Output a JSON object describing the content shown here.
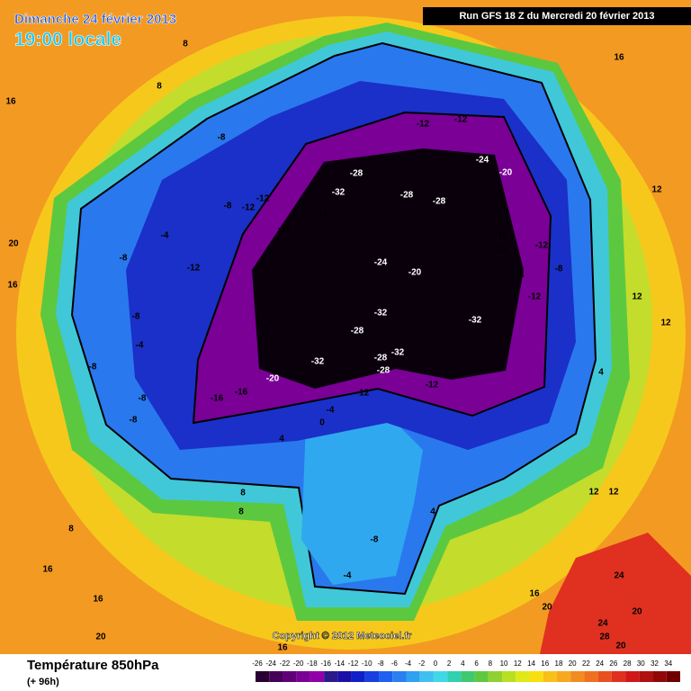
{
  "header": {
    "date": "Dimanche 24 février 2013",
    "time": "19:00 locale",
    "run": "Run GFS 18 Z du Mercredi 20 février 2013"
  },
  "footer": {
    "title": "Température 850hPa",
    "lead": "(+ 96h)",
    "copyright": "Copyright © 2012 Meteociel.fr"
  },
  "scale": {
    "ticks": [
      -26,
      -24,
      -22,
      -20,
      -18,
      -16,
      -14,
      -12,
      -10,
      -8,
      -6,
      -4,
      -2,
      0,
      2,
      4,
      6,
      8,
      10,
      12,
      14,
      16,
      18,
      20,
      22,
      24,
      26,
      28,
      30,
      32,
      34
    ],
    "colors": [
      "#2a0030",
      "#45005a",
      "#600078",
      "#7a0096",
      "#9000aa",
      "#2a1a8a",
      "#1a10a8",
      "#1020c8",
      "#1840e0",
      "#2060f0",
      "#2a80f0",
      "#30a0f0",
      "#40c0f0",
      "#40d8e8",
      "#30d0b0",
      "#40c870",
      "#60c840",
      "#90d030",
      "#b8e020",
      "#e0e818",
      "#f8e010",
      "#f8c018",
      "#f8a820",
      "#f08c20",
      "#f07020",
      "#e85020",
      "#e03020",
      "#d01818",
      "#b01010",
      "#900808",
      "#700000"
    ]
  },
  "map": {
    "labels": [
      -12,
      -12,
      -24,
      -20,
      -28,
      -32,
      -28,
      -28,
      -16,
      -16,
      -12,
      -12,
      -8,
      -4,
      -8,
      -12,
      -8,
      -8,
      -4,
      -8,
      -8,
      -8,
      -16,
      -16,
      -20,
      -24,
      -20,
      -32,
      -28,
      -28,
      -32,
      -28,
      -32,
      -32,
      -16,
      -12,
      -12,
      -8,
      -8,
      -12,
      -12,
      -12,
      -4,
      0,
      4,
      -8,
      -4,
      4,
      8,
      8,
      16,
      16,
      16,
      20,
      12,
      12,
      12,
      4,
      12,
      12,
      16,
      20,
      24,
      20,
      24,
      28,
      20,
      20,
      16,
      8,
      8,
      8,
      16,
      16
    ]
  }
}
